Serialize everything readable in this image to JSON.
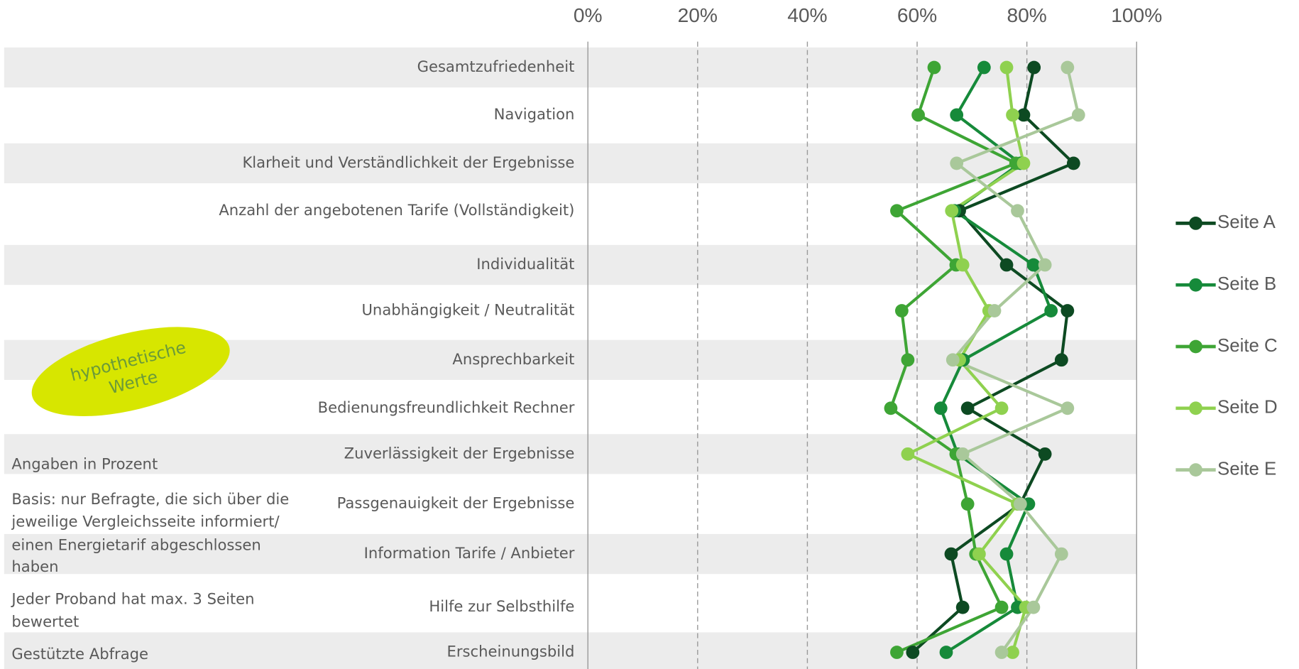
{
  "chart_data": {
    "type": "line",
    "orientation": "vertical-categories",
    "categories": [
      "Gesamtzufriedenheit",
      "Navigation",
      "Klarheit und Verständlichkeit der Ergebnisse",
      "Anzahl der angebotenen Tarife (Vollständigkeit)",
      "Individualität",
      "Unabhängigkeit / Neutralität",
      "Ansprechbarkeit",
      "Bedienungsfreundlichkeit Rechner",
      "Zuverlässigkeit der Ergebnisse",
      "Passgenauigkeit der Ergebnisse",
      "Information Tarife / Anbieter",
      "Hilfe zur Selbsthilfe",
      "Erscheinungsbild"
    ],
    "series": [
      {
        "name": "Seite A",
        "color": "#0d4a22",
        "values": [
          81.3,
          79.4,
          88.5,
          67.7,
          76.3,
          87.4,
          86.3,
          69.2,
          83.3,
          78.8,
          66.2,
          68.3,
          59.2
        ]
      },
      {
        "name": "Seite B",
        "color": "#168a3a",
        "values": [
          72.2,
          67.2,
          78.8,
          66.8,
          81.2,
          84.4,
          68.4,
          64.3,
          67.4,
          80.3,
          76.3,
          78.3,
          65.3
        ]
      },
      {
        "name": "Seite C",
        "color": "#3ea535",
        "values": [
          63.1,
          60.2,
          78.0,
          56.3,
          67.1,
          57.2,
          58.3,
          55.2,
          67.1,
          69.2,
          70.7,
          75.4,
          56.3
        ]
      },
      {
        "name": "Seite D",
        "color": "#8fd14f",
        "values": [
          76.3,
          77.4,
          79.4,
          66.3,
          68.3,
          73.1,
          67.7,
          75.4,
          58.3,
          78.3,
          71.3,
          79.8,
          77.4
        ]
      },
      {
        "name": "Seite E",
        "color": "#a9c89a",
        "values": [
          87.4,
          89.4,
          67.2,
          78.3,
          83.3,
          74.1,
          66.5,
          87.4,
          68.3,
          78.8,
          86.3,
          81.2,
          75.4
        ]
      }
    ],
    "xlim": [
      0,
      100
    ],
    "xticks": [
      {
        "value": 0,
        "label": "0%"
      },
      {
        "value": 20,
        "label": "20%"
      },
      {
        "value": 40,
        "label": "40%"
      },
      {
        "value": 60,
        "label": "60%"
      },
      {
        "value": 80,
        "label": "80%"
      },
      {
        "value": 100,
        "label": "100%"
      }
    ],
    "grid": true,
    "legend": "right",
    "annotation_lines": [
      "hypothetische",
      "Werte"
    ],
    "notes": [
      [
        "Angaben in Prozent"
      ],
      [
        "Basis: nur Befragte, die sich über die",
        "jeweilige Vergleichsseite informiert/",
        "einen Energietarif abgeschlossen",
        "haben"
      ],
      [
        "Jeder Proband hat max. 3 Seiten",
        "bewertet"
      ],
      [
        "Gestützte Abfrage"
      ]
    ]
  }
}
